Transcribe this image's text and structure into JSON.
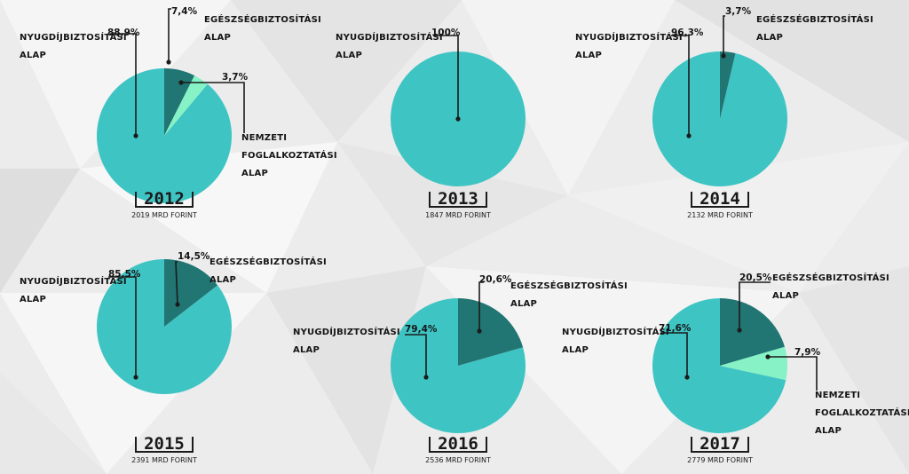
{
  "colors": {
    "nyugdij": "#3fc4c4",
    "egeszseg": "#217573",
    "nemzeti": "#86f2c5",
    "leader": "#1b1b1b"
  },
  "chart_data": [
    {
      "type": "pie",
      "title": "2012",
      "subtitle": "2019 MRD FORINT",
      "slices": [
        {
          "label": [
            "NYUGDÍJBIZTOSÍTÁSI",
            "ALAP"
          ],
          "value": 88.9,
          "display": "88,9%",
          "color_key": "nyugdij"
        },
        {
          "label": [
            "EGÉSZSÉGBIZTOSÍTÁSI",
            "ALAP"
          ],
          "value": 7.4,
          "display": "7,4%",
          "color_key": "egeszseg"
        },
        {
          "label": [
            "NEMZETI",
            "FOGLALKOZTATÁSI",
            "ALAP"
          ],
          "value": 3.7,
          "display": "3,7%",
          "color_key": "nemzeti"
        }
      ]
    },
    {
      "type": "pie",
      "title": "2013",
      "subtitle": "1847 MRD FORINT",
      "slices": [
        {
          "label": [
            "NYUGDÍJBIZTOSÍTÁSI",
            "ALAP"
          ],
          "value": 100,
          "display": "100%",
          "color_key": "nyugdij"
        }
      ]
    },
    {
      "type": "pie",
      "title": "2014",
      "subtitle": "2132 MRD FORINT",
      "slices": [
        {
          "label": [
            "NYUGDÍJBIZTOSÍTÁSI",
            "ALAP"
          ],
          "value": 96.3,
          "display": "96,3%",
          "color_key": "nyugdij"
        },
        {
          "label": [
            "EGÉSZSÉGBIZTOSÍTÁSI",
            "ALAP"
          ],
          "value": 3.7,
          "display": "3,7%",
          "color_key": "egeszseg"
        }
      ]
    },
    {
      "type": "pie",
      "title": "2015",
      "subtitle": "2391 MRD FORINT",
      "slices": [
        {
          "label": [
            "NYUGDÍJBIZTOSÍTÁSI",
            "ALAP"
          ],
          "value": 85.5,
          "display": "85,5%",
          "color_key": "nyugdij"
        },
        {
          "label": [
            "EGÉSZSÉGBIZTOSÍTÁSI",
            "ALAP"
          ],
          "value": 14.5,
          "display": "14,5%",
          "color_key": "egeszseg"
        }
      ]
    },
    {
      "type": "pie",
      "title": "2016",
      "subtitle": "2536 MRD FORINT",
      "slices": [
        {
          "label": [
            "NYUGDÍJBIZTOSÍTÁSI",
            "ALAP"
          ],
          "value": 79.4,
          "display": "79,4%",
          "color_key": "nyugdij"
        },
        {
          "label": [
            "EGÉSZSÉGBIZTOSÍTÁSI",
            "ALAP"
          ],
          "value": 20.6,
          "display": "20,6%",
          "color_key": "egeszseg"
        }
      ]
    },
    {
      "type": "pie",
      "title": "2017",
      "subtitle": "2779 MRD FORINT",
      "slices": [
        {
          "label": [
            "NYUGDÍJBIZTOSÍTÁSI",
            "ALAP"
          ],
          "value": 71.6,
          "display": "71,6%",
          "color_key": "nyugdij"
        },
        {
          "label": [
            "EGÉSZSÉGBIZTOSÍTÁSI",
            "ALAP"
          ],
          "value": 20.5,
          "display": "20,5%",
          "color_key": "egeszseg"
        },
        {
          "label": [
            "NEMZETI",
            "FOGLALKOZTATÁSI",
            "ALAP"
          ],
          "value": 7.9,
          "display": "7,9%",
          "color_key": "nemzeti"
        }
      ]
    }
  ]
}
